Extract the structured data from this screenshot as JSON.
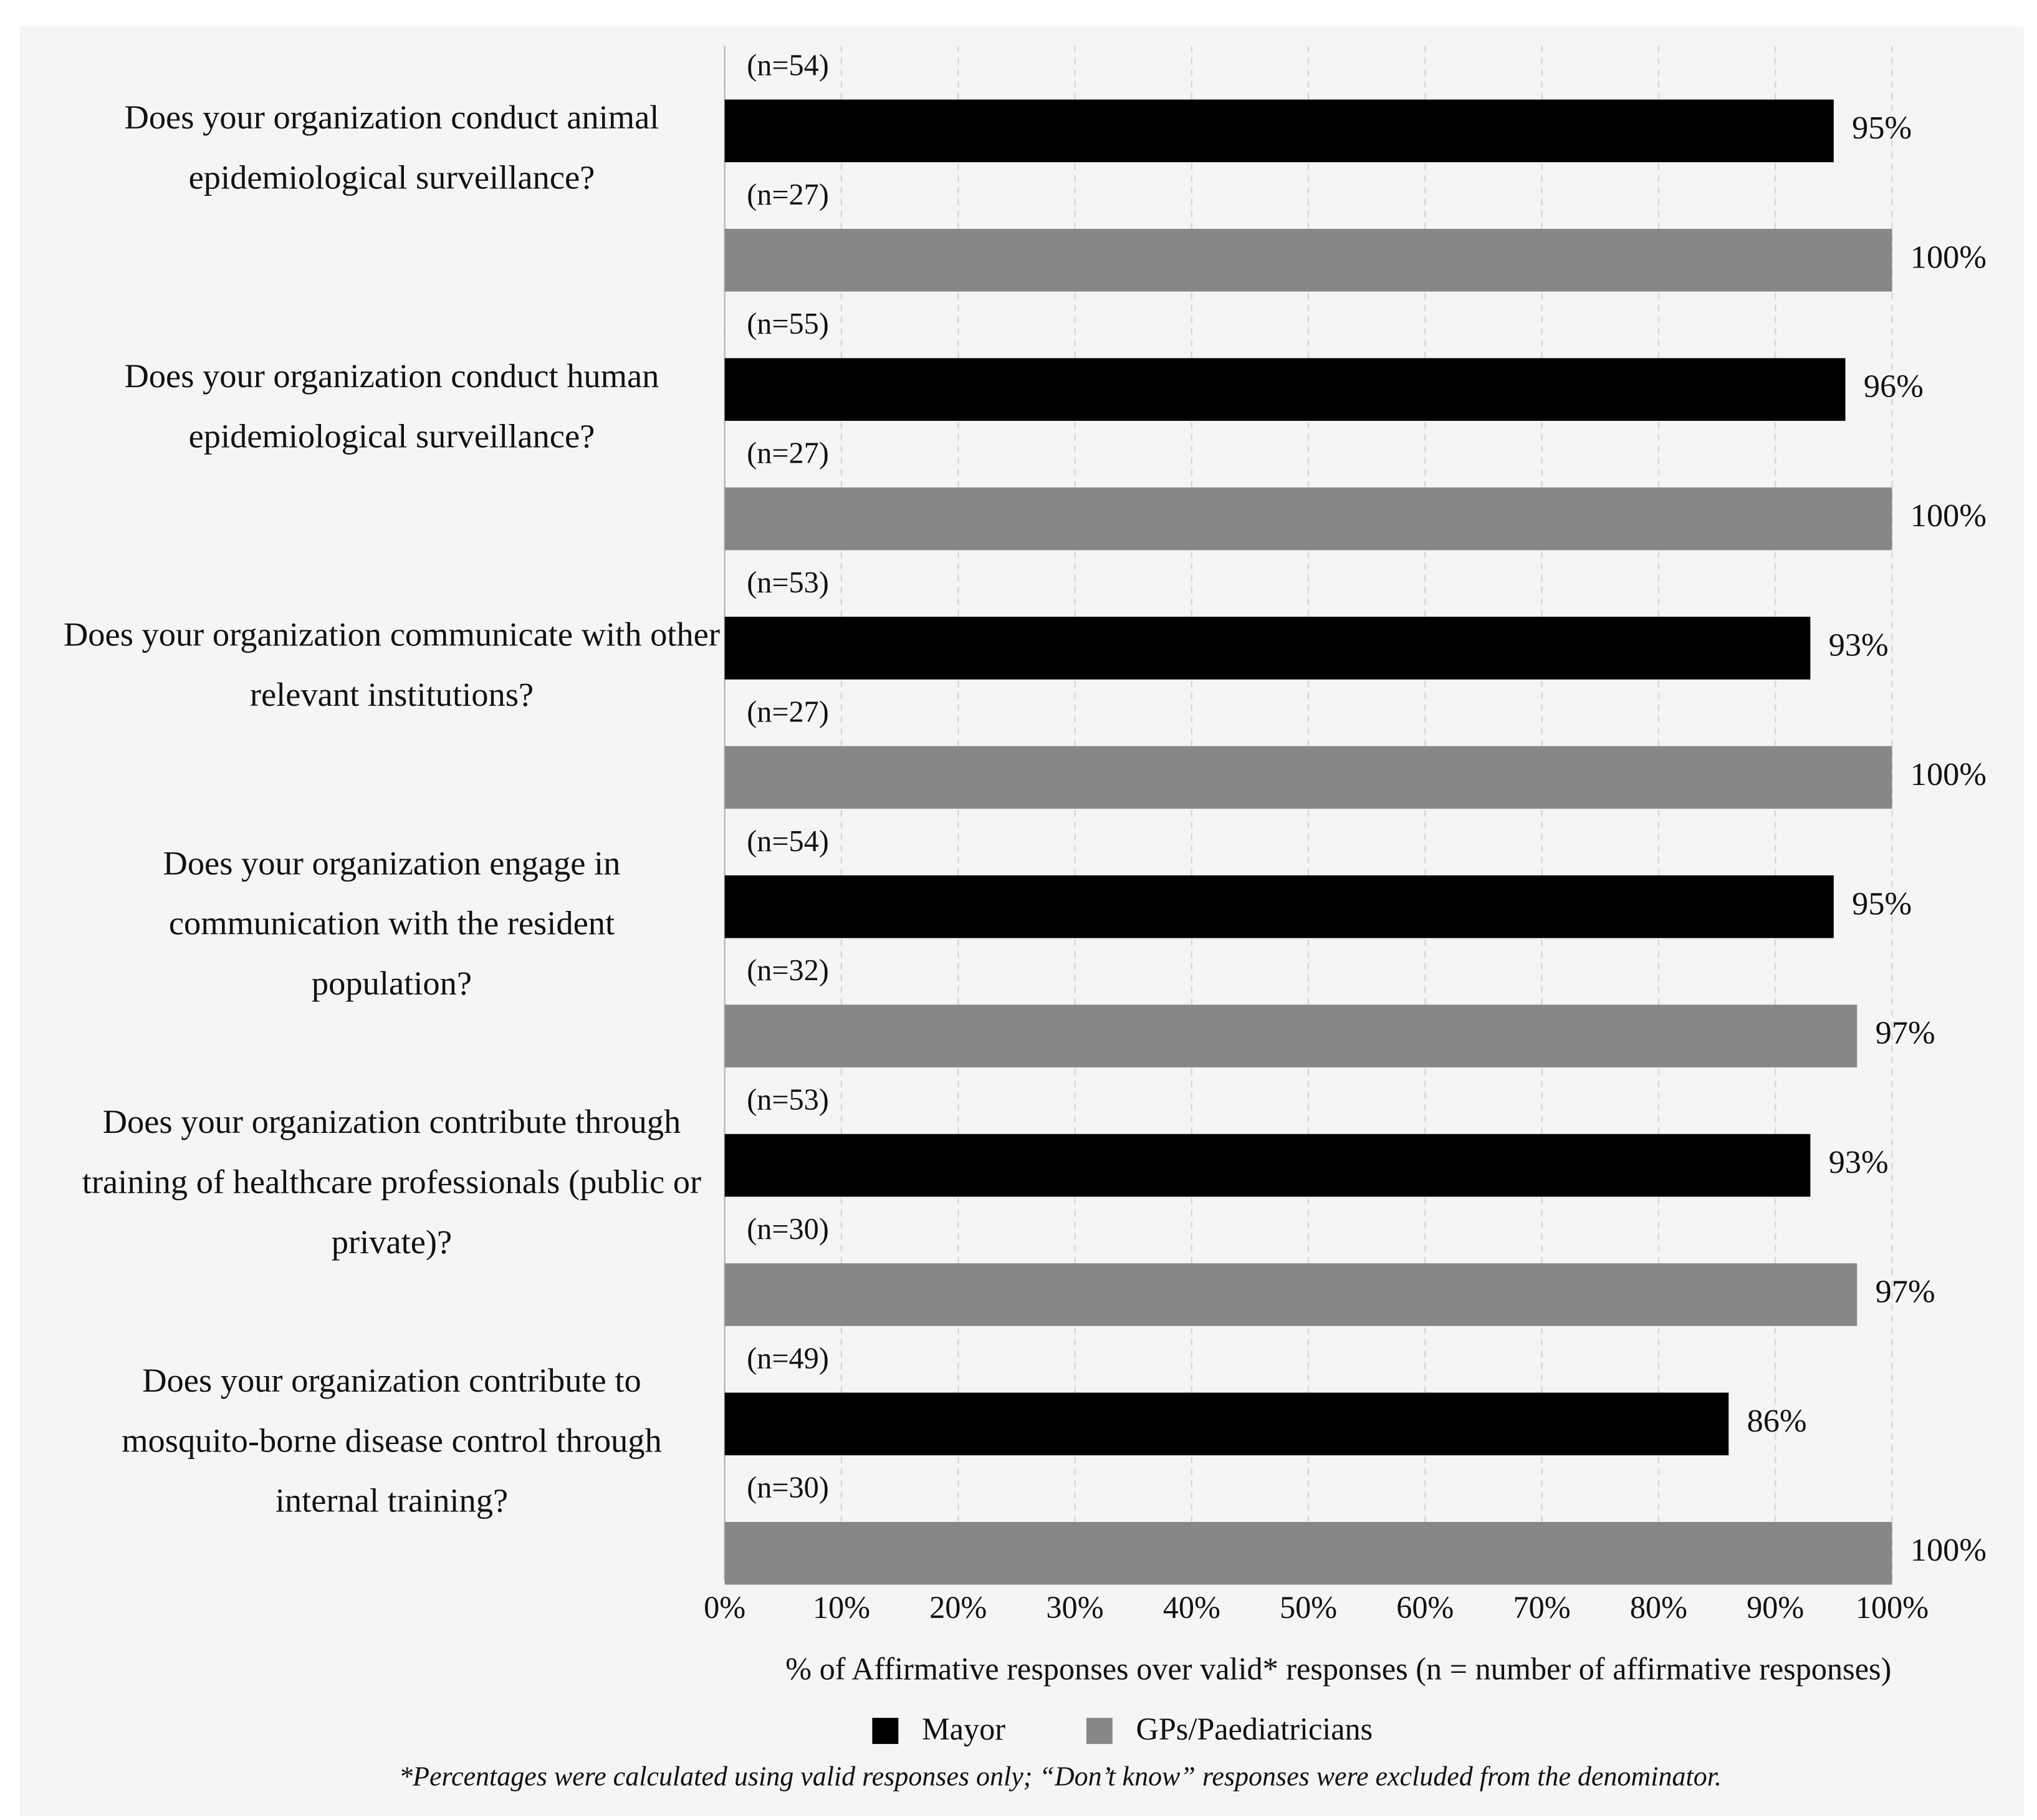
{
  "chart_data": {
    "type": "hbar-grouped",
    "categories": [
      [
        "Does your organization conduct animal",
        "epidemiological surveillance?"
      ],
      [
        "Does your organization conduct human",
        "epidemiological surveillance?"
      ],
      [
        "Does your organization communicate with other",
        "relevant institutions?"
      ],
      [
        "Does your organization engage in",
        "communication with the resident",
        "population?"
      ],
      [
        "Does your organization contribute through",
        "training of healthcare professionals (public or",
        "private)?"
      ],
      [
        "Does your organization contribute to",
        "mosquito-borne disease control through",
        "internal training?"
      ]
    ],
    "series": [
      {
        "name": "Mayor",
        "color": "#000000",
        "values": [
          95,
          96,
          93,
          95,
          93,
          86
        ],
        "value_labels": [
          "95%",
          "96%",
          "93%",
          "95%",
          "93%",
          "86%"
        ],
        "n_labels": [
          "(n=54)",
          "(n=55)",
          "(n=53)",
          "(n=54)",
          "(n=53)",
          "(n=49)"
        ]
      },
      {
        "name": "GPs/Paediatricians",
        "color": "#878787",
        "values": [
          100,
          100,
          100,
          97,
          97,
          100
        ],
        "value_labels": [
          "100%",
          "100%",
          "100%",
          "97%",
          "97%",
          "100%"
        ],
        "n_labels": [
          "(n=27)",
          "(n=27)",
          "(n=27)",
          "(n=32)",
          "(n=30)",
          "(n=30)"
        ]
      }
    ],
    "xlim": [
      0,
      100
    ],
    "xticks": [
      {
        "value": 0,
        "label": "0%"
      },
      {
        "value": 10,
        "label": "10%"
      },
      {
        "value": 20,
        "label": "20%"
      },
      {
        "value": 30,
        "label": "30%"
      },
      {
        "value": 40,
        "label": "40%"
      },
      {
        "value": 50,
        "label": "50%"
      },
      {
        "value": 60,
        "label": "60%"
      },
      {
        "value": 70,
        "label": "70%"
      },
      {
        "value": 80,
        "label": "80%"
      },
      {
        "value": 90,
        "label": "90%"
      },
      {
        "value": 100,
        "label": "100%"
      }
    ],
    "x_label": "% of Affirmative responses over valid* responses (n = number of affirmative responses)",
    "grid": true,
    "legend": "bottom",
    "footnote": "*Percentages were calculated using valid responses only; “Don’t know” responses were excluded from the denominator."
  }
}
